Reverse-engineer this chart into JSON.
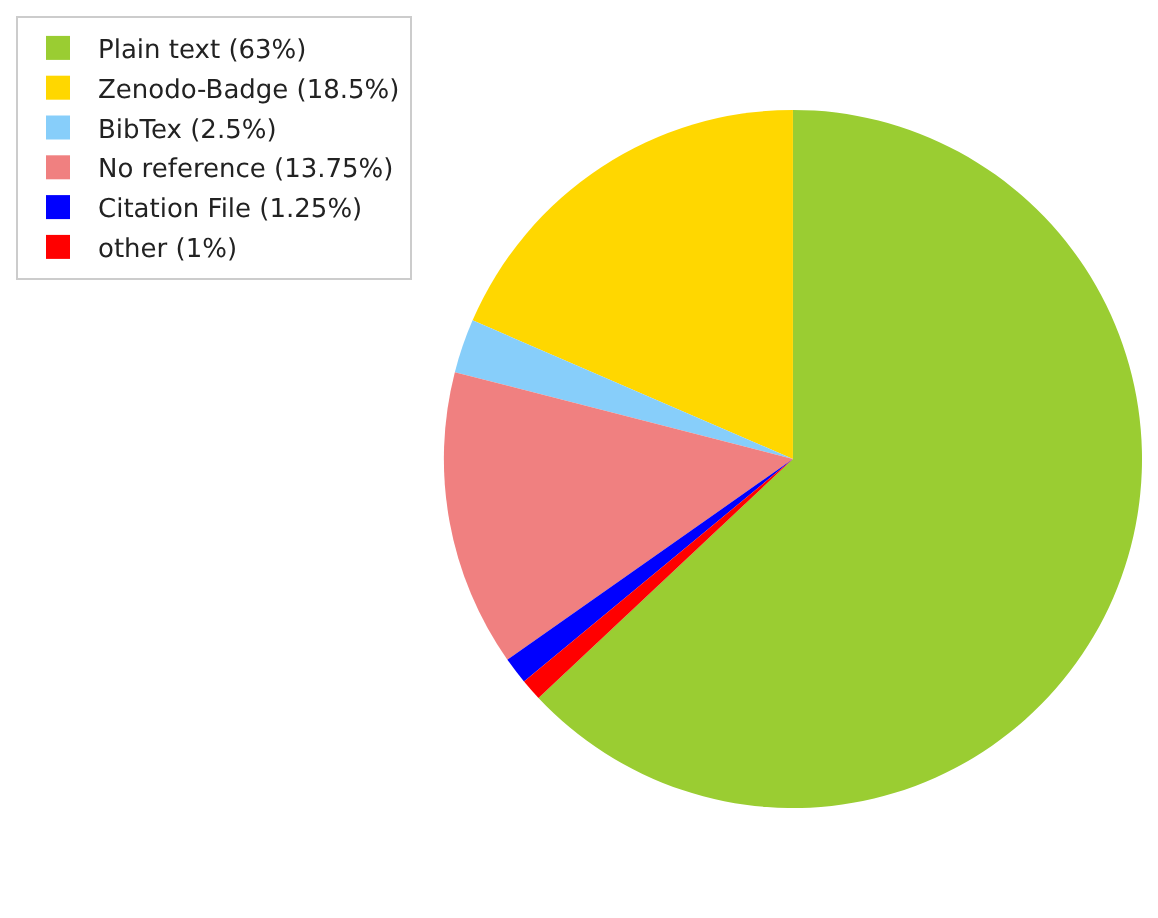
{
  "chart_data": {
    "type": "pie",
    "categories": [
      "Plain text (63%)",
      "Zenodo-Badge (18.5%)",
      "BibTex (2.5%)",
      "No reference (13.75%)",
      "Citation File (1.25%)",
      "other (1%)"
    ],
    "values": [
      63,
      18.5,
      2.5,
      13.75,
      1.25,
      1
    ],
    "colors": [
      "#9acd32",
      "#ffd700",
      "#87cefa",
      "#f08080",
      "#0000ff",
      "#ff0000"
    ],
    "legend": "top left"
  }
}
